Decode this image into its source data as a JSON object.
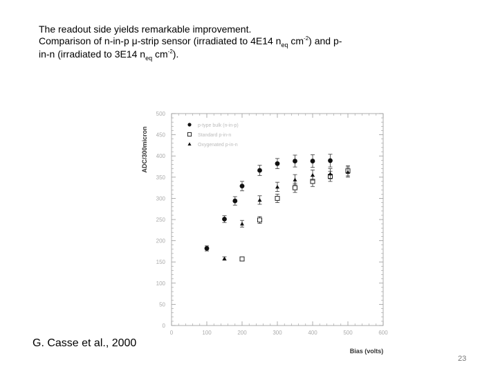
{
  "slide": {
    "line1": "The readout side yields remarkable improvement.",
    "line2_a": "Comparison of n-in-p ",
    "line2_mu": "μ",
    "line2_b": "-strip sensor (irradiated to 4E14 n",
    "neq_sub": "eq",
    "line2_c": " cm",
    "exp": "-2",
    "line2_d": ") and p-",
    "line3_a": "in-n (irradiated to 3E14 n",
    "line3_b": " cm",
    "line3_c": ").",
    "caption": "G. Casse et al., 2000",
    "page_number": "23"
  },
  "chart_data": {
    "type": "scatter",
    "xlabel": "Bias (volts)",
    "ylabel": "ADC/300micron",
    "xlim": [
      0,
      600
    ],
    "ylim": [
      0,
      500
    ],
    "xticks": [
      "0",
      "100",
      "200",
      "300",
      "400",
      "500",
      "600"
    ],
    "yticks": [
      "0",
      "50",
      "100",
      "150",
      "200",
      "250",
      "300",
      "350",
      "400",
      "450",
      "500"
    ],
    "grid": false,
    "legend_position": "top-left",
    "series": [
      {
        "name": "p-type bulk (n-in-p)",
        "marker": "filled-circle",
        "points": [
          [
            100,
            182
          ],
          [
            150,
            251
          ],
          [
            180,
            294
          ],
          [
            200,
            329
          ],
          [
            250,
            366
          ],
          [
            300,
            382
          ],
          [
            350,
            388
          ],
          [
            400,
            388
          ],
          [
            450,
            389
          ]
        ],
        "errors": [
          6,
          8,
          10,
          11,
          12,
          12,
          14,
          15,
          15
        ]
      },
      {
        "name": "Standard p-in-n",
        "marker": "open-square",
        "points": [
          [
            200,
            157
          ],
          [
            250,
            249
          ],
          [
            300,
            300
          ],
          [
            350,
            325
          ],
          [
            400,
            340
          ],
          [
            450,
            352
          ],
          [
            500,
            365
          ]
        ],
        "errors": [
          3,
          8,
          10,
          11,
          12,
          12,
          12
        ]
      },
      {
        "name": "Oxygenated p-in-n",
        "marker": "filled-triangle",
        "points": [
          [
            150,
            158
          ],
          [
            200,
            240
          ],
          [
            250,
            296
          ],
          [
            300,
            327
          ],
          [
            350,
            344
          ],
          [
            400,
            355
          ],
          [
            450,
            358
          ],
          [
            500,
            362
          ]
        ],
        "errors": [
          4,
          8,
          10,
          11,
          12,
          12,
          12,
          12
        ]
      }
    ]
  }
}
